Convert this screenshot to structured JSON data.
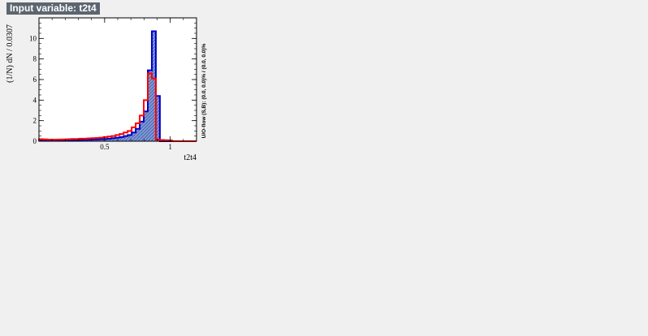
{
  "header": {
    "title": "Input variable: t2t4"
  },
  "chart_data": {
    "type": "histogram",
    "xlabel": "t2t4",
    "ylabel": "(1/N) dN / 0.0307",
    "right_label": "U/O-flow (S,B): (0.0, 0.0)% / (0.0, 0.0)%",
    "xlim": [
      0.0,
      1.2
    ],
    "ylim": [
      0,
      12
    ],
    "bin_width": 0.0307,
    "x_ticks": [
      {
        "value": 0.5,
        "label": "0.5"
      },
      {
        "value": 1.0,
        "label": "1"
      }
    ],
    "y_ticks": [
      {
        "value": 0,
        "label": "0"
      },
      {
        "value": 2,
        "label": "2"
      },
      {
        "value": 4,
        "label": "4"
      },
      {
        "value": 6,
        "label": "6"
      },
      {
        "value": 8,
        "label": "8"
      },
      {
        "value": 10,
        "label": "10"
      }
    ],
    "series": [
      {
        "role": "signal",
        "color": "#0000cc",
        "fill": "#7d99d1",
        "values": [
          0.12,
          0.1,
          0.08,
          0.07,
          0.08,
          0.08,
          0.09,
          0.1,
          0.11,
          0.12,
          0.13,
          0.14,
          0.15,
          0.16,
          0.18,
          0.2,
          0.22,
          0.25,
          0.3,
          0.35,
          0.4,
          0.5,
          0.6,
          0.85,
          1.2,
          1.9,
          2.9,
          6.9,
          10.7,
          4.4,
          0,
          0,
          0,
          0,
          0,
          0,
          0,
          0,
          0
        ]
      },
      {
        "role": "background",
        "color": "#ff0000",
        "fill": "none",
        "values": [
          0.2,
          0.18,
          0.16,
          0.15,
          0.16,
          0.17,
          0.18,
          0.2,
          0.22,
          0.22,
          0.25,
          0.25,
          0.28,
          0.3,
          0.32,
          0.35,
          0.4,
          0.45,
          0.5,
          0.6,
          0.7,
          0.85,
          1.0,
          1.35,
          1.75,
          2.5,
          4.0,
          6.6,
          6.1,
          0.15,
          0.12,
          0.1,
          0.08,
          0,
          0,
          0,
          0,
          0,
          0
        ]
      }
    ]
  }
}
